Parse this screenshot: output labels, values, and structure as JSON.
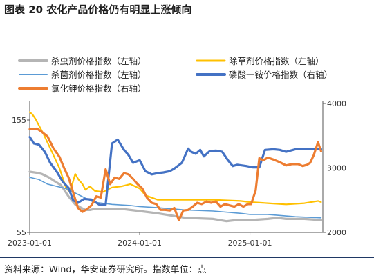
{
  "figure": {
    "title": "图表 20 农化产品价格仍有明显上涨倾向",
    "source": "资料来源：Wind，华安证券研究所。指数单位：点"
  },
  "chart_data": {
    "type": "line",
    "x_ticks": [
      "2023-01-01",
      "2024-01-01",
      "2025-01-01"
    ],
    "y_left": {
      "ticks": [
        155,
        55
      ],
      "range": [
        55,
        175
      ]
    },
    "y_right": {
      "ticks": [
        4000,
        3000,
        2000
      ],
      "range": [
        2000,
        4000
      ]
    },
    "legend_position": "top",
    "series": [
      {
        "name": "杀虫剂价格指数（左轴）",
        "axis": "left",
        "color": "#b5b5b5",
        "x": [
          "2023-01-01",
          "2023-01-25",
          "2023-02-10",
          "2023-03-05",
          "2023-03-28",
          "2023-04-15",
          "2023-05-10",
          "2023-06-01",
          "2023-06-20",
          "2023-07-05",
          "2023-07-20",
          "2023-08-05",
          "2023-09-01",
          "2023-10-01",
          "2023-11-01",
          "2023-12-01",
          "2024-01-01",
          "2024-03-01",
          "2024-06-01",
          "2024-09-01",
          "2024-10-15",
          "2024-11-15",
          "2025-01-01",
          "2025-03-01",
          "2025-04-01",
          "2025-05-01",
          "2025-07-01",
          "2025-08-25"
        ],
        "values": [
          109,
          108,
          107,
          104,
          100,
          97,
          87,
          80,
          77,
          75,
          75,
          76,
          76,
          76,
          76,
          75,
          74,
          72,
          68,
          67,
          65,
          66,
          66,
          67,
          68,
          67,
          67,
          66
        ]
      },
      {
        "name": "除草剂价格指数（左轴）",
        "axis": "right_legend_left_axis",
        "color": "#ffc000",
        "x": [
          "2023-01-01",
          "2023-01-10",
          "2023-01-20",
          "2023-02-15",
          "2023-03-10",
          "2023-04-10",
          "2023-05-01",
          "2023-05-10",
          "2023-05-20",
          "2023-06-01",
          "2023-06-12",
          "2023-06-25",
          "2023-07-05",
          "2023-07-20",
          "2023-08-05",
          "2023-09-01",
          "2023-10-01",
          "2023-11-01",
          "2023-12-01",
          "2024-01-01",
          "2024-01-20",
          "2024-03-01",
          "2024-06-01",
          "2024-09-01",
          "2024-12-01",
          "2025-01-01",
          "2025-03-01",
          "2025-05-01",
          "2025-07-01",
          "2025-08-15",
          "2025-08-25"
        ],
        "values": [
          162,
          160,
          156,
          143,
          130,
          112,
          95,
          92,
          96,
          107,
          102,
          98,
          93,
          96,
          92,
          91,
          95,
          96,
          98,
          94,
          88,
          84,
          84,
          84,
          83,
          82,
          81,
          80,
          81,
          83,
          82
        ]
      },
      {
        "name": "杀菌剂价格指数（左轴）",
        "axis": "left",
        "color": "#5b9bd5",
        "x": [
          "2023-01-01",
          "2023-02-01",
          "2023-03-01",
          "2023-04-01",
          "2023-05-01",
          "2023-06-01",
          "2023-07-01",
          "2023-08-01",
          "2023-10-01",
          "2023-12-01",
          "2024-01-01",
          "2024-03-01",
          "2024-06-01",
          "2024-09-01",
          "2024-12-01",
          "2025-01-01",
          "2025-03-01",
          "2025-06-01",
          "2025-08-25"
        ],
        "values": [
          104,
          102,
          98,
          96,
          94,
          90,
          86,
          82,
          80,
          79,
          78,
          77,
          75,
          74,
          72,
          71,
          71,
          69,
          68
        ]
      },
      {
        "name": "磷酸一铵价格指数（右轴）",
        "axis": "right",
        "color": "#4472c4",
        "x": [
          "2023-01-01",
          "2023-01-15",
          "2023-02-01",
          "2023-02-20",
          "2023-03-10",
          "2023-04-01",
          "2023-04-20",
          "2023-05-10",
          "2023-05-25",
          "2023-06-10",
          "2023-07-01",
          "2023-07-25",
          "2023-08-20",
          "2023-09-10",
          "2023-10-01",
          "2023-10-20",
          "2023-11-10",
          "2023-11-25",
          "2023-12-10",
          "2024-01-01",
          "2024-01-20",
          "2024-02-10",
          "2024-03-01",
          "2024-03-20",
          "2024-04-10",
          "2024-04-25",
          "2024-05-20",
          "2024-06-10",
          "2024-06-20",
          "2024-07-05",
          "2024-07-20",
          "2024-08-01",
          "2024-08-20",
          "2024-09-10",
          "2024-10-01",
          "2024-10-20",
          "2024-11-05",
          "2024-11-20",
          "2024-12-20",
          "2025-01-10",
          "2025-01-20",
          "2025-02-01",
          "2025-02-20",
          "2025-03-20",
          "2025-04-10",
          "2025-05-01",
          "2025-06-01",
          "2025-07-01",
          "2025-08-01",
          "2025-08-25"
        ],
        "values": [
          3480,
          3380,
          3360,
          3250,
          3080,
          2940,
          2790,
          2690,
          2500,
          2460,
          2520,
          2510,
          2430,
          2430,
          3380,
          3440,
          3280,
          3200,
          3080,
          3120,
          2950,
          2900,
          2920,
          2930,
          2950,
          2990,
          3080,
          3300,
          3250,
          3220,
          3280,
          3180,
          3260,
          3270,
          3250,
          3120,
          3030,
          3050,
          3030,
          3010,
          3010,
          3010,
          3280,
          3290,
          3280,
          3250,
          3290,
          3290,
          3290,
          3290
        ]
      },
      {
        "name": "氯化钾价格指数（右轴）",
        "axis": "right",
        "color": "#ed7d31",
        "x": [
          "2023-01-01",
          "2023-01-25",
          "2023-02-10",
          "2023-03-01",
          "2023-03-20",
          "2023-04-10",
          "2023-04-25",
          "2023-05-10",
          "2023-05-25",
          "2023-06-10",
          "2023-06-25",
          "2023-07-10",
          "2023-07-25",
          "2023-08-10",
          "2023-08-25",
          "2023-09-10",
          "2023-09-25",
          "2023-10-10",
          "2023-10-25",
          "2023-11-10",
          "2023-11-25",
          "2023-12-10",
          "2023-12-25",
          "2024-01-10",
          "2024-01-25",
          "2024-02-10",
          "2024-02-25",
          "2024-03-10",
          "2024-03-25",
          "2024-04-10",
          "2024-04-25",
          "2024-05-10",
          "2024-05-25",
          "2024-06-10",
          "2024-06-25",
          "2024-07-10",
          "2024-07-25",
          "2024-08-10",
          "2024-08-25",
          "2024-09-10",
          "2024-09-25",
          "2024-10-10",
          "2024-10-25",
          "2024-11-10",
          "2024-11-25",
          "2024-12-10",
          "2024-12-25",
          "2025-01-05",
          "2025-01-20",
          "2025-02-01",
          "2025-02-15",
          "2025-03-01",
          "2025-03-20",
          "2025-04-10",
          "2025-05-01",
          "2025-05-20",
          "2025-06-10",
          "2025-06-25",
          "2025-07-10",
          "2025-07-20",
          "2025-08-01",
          "2025-08-15",
          "2025-08-25"
        ],
        "values": [
          3600,
          3610,
          3560,
          3490,
          3310,
          3170,
          3000,
          2850,
          2620,
          2380,
          2320,
          2360,
          2420,
          2560,
          2540,
          2980,
          2750,
          2850,
          2830,
          2920,
          2900,
          2830,
          2750,
          2680,
          2540,
          2460,
          2440,
          2350,
          2350,
          2340,
          2380,
          2190,
          2340,
          2350,
          2400,
          2460,
          2440,
          2480,
          2460,
          2480,
          2400,
          2440,
          2420,
          2400,
          2440,
          2400,
          2440,
          2440,
          2650,
          3150,
          3120,
          3160,
          3130,
          3090,
          3040,
          3060,
          3060,
          3030,
          3050,
          3080,
          3200,
          3400,
          3260
        ]
      }
    ]
  }
}
